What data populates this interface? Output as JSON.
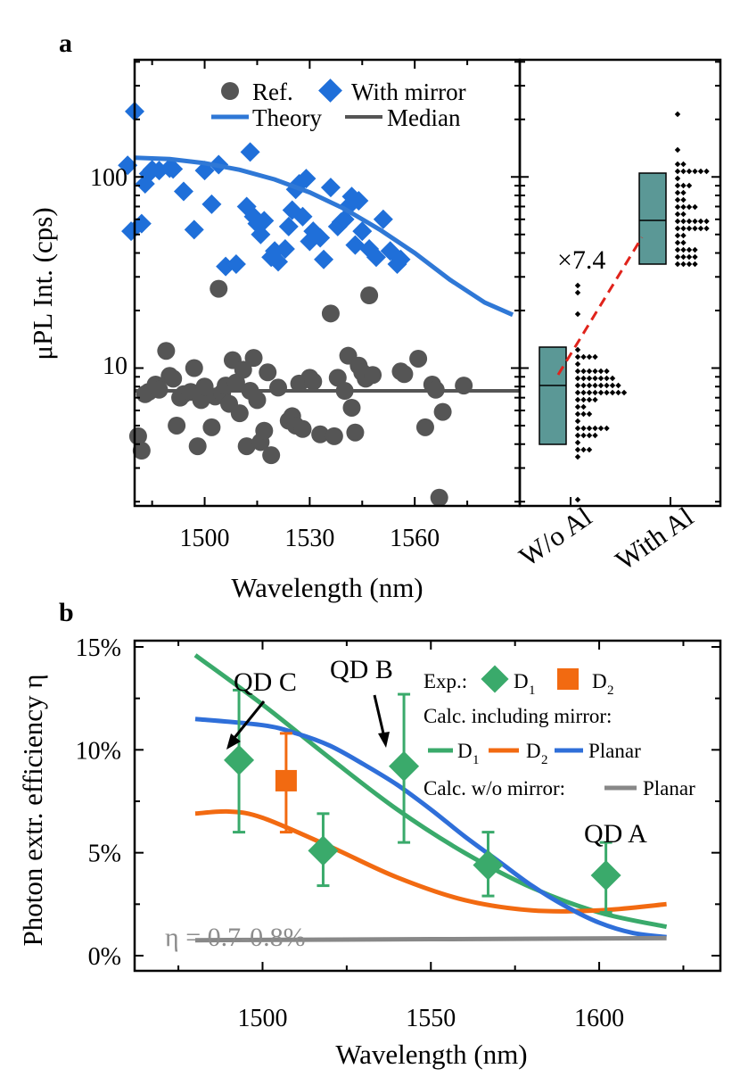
{
  "panel_a": {
    "label": "a",
    "xlabel": "Wavelength (nm)",
    "ylabel": "μPL Int. (cps)",
    "ytick_labels": [
      "10",
      "100"
    ],
    "legend": {
      "ref": "Ref.",
      "mirror": "With mirror",
      "theory": "Theory",
      "median": "Median"
    },
    "box_categories": [
      "W/o Al",
      "With Al"
    ],
    "ratio_label": "×7.4",
    "colors": {
      "ref": "#555555",
      "mirror": "#1f6fd9",
      "theory": "#2f78d6",
      "median": "#555555",
      "box": "#5b9896",
      "ratio": "#e0231b"
    }
  },
  "panel_b": {
    "label": "b",
    "xlabel": "Wavelength (nm)",
    "ylabel": "Photon extr. efficiency η",
    "legend": {
      "exp": "Exp.:",
      "d1": "D",
      "d2": "D",
      "sub1": "1",
      "sub2": "2",
      "calc_mirror": "Calc. including mirror:",
      "planar": "Planar",
      "calc_nomirror": "Calc. w/o mirror:",
      "planar2": "Planar"
    },
    "annotations": {
      "qd_a": "QD A",
      "qd_b": "QD B",
      "qd_c": "QD C",
      "eta": "η = 0.7-0.8%"
    },
    "colors": {
      "d1": "#3aaa6b",
      "d2": "#f26a11",
      "planar": "#2f6fd9",
      "nomirror": "#888888",
      "eta_text": "#8c8c8c"
    }
  },
  "chart_data": [
    {
      "type": "scatter",
      "title": "",
      "xlabel": "Wavelength (nm)",
      "ylabel": "μPL Int. (cps)",
      "xlim": [
        1480,
        1590
      ],
      "ylim": [
        1.9,
        410
      ],
      "yscale": "log",
      "xticks": [
        1500,
        1530,
        1560
      ],
      "series": [
        {
          "name": "Ref.",
          "points": [
            [
              1481,
              4.4
            ],
            [
              1482,
              3.7
            ],
            [
              1483,
              7.3
            ],
            [
              1484,
              7.5
            ],
            [
              1486,
              8.2
            ],
            [
              1487,
              7.7
            ],
            [
              1489,
              12.3
            ],
            [
              1490,
              9.1
            ],
            [
              1491,
              8.8
            ],
            [
              1492,
              5.0
            ],
            [
              1493,
              7.0
            ],
            [
              1494,
              7.3
            ],
            [
              1496,
              7.5
            ],
            [
              1497,
              10.0
            ],
            [
              1498,
              3.9
            ],
            [
              1499,
              6.8
            ],
            [
              1500,
              8.0
            ],
            [
              1502,
              4.9
            ],
            [
              1503,
              7.1
            ],
            [
              1504,
              26.0
            ],
            [
              1505,
              7.4
            ],
            [
              1506,
              8.1
            ],
            [
              1507,
              6.5
            ],
            [
              1508,
              11.0
            ],
            [
              1509,
              8.4
            ],
            [
              1510,
              5.8
            ],
            [
              1511,
              9.8
            ],
            [
              1512,
              3.9
            ],
            [
              1513,
              7.6
            ],
            [
              1514,
              11.3
            ],
            [
              1515,
              6.8
            ],
            [
              1516,
              4.1
            ],
            [
              1517,
              4.7
            ],
            [
              1518,
              9.5
            ],
            [
              1519,
              3.5
            ],
            [
              1521,
              7.9
            ],
            [
              1524,
              5.3
            ],
            [
              1525,
              5.6
            ],
            [
              1526,
              5.0
            ],
            [
              1527,
              8.3
            ],
            [
              1528,
              4.8
            ],
            [
              1530,
              8.9
            ],
            [
              1531,
              8.5
            ],
            [
              1533,
              4.5
            ],
            [
              1536,
              19.3
            ],
            [
              1537,
              4.4
            ],
            [
              1538,
              8.9
            ],
            [
              1540,
              7.6
            ],
            [
              1541,
              11.6
            ],
            [
              1542,
              6.2
            ],
            [
              1543,
              4.6
            ],
            [
              1544,
              10.3
            ],
            [
              1545,
              9.5
            ],
            [
              1546,
              8.8
            ],
            [
              1547,
              24.0
            ],
            [
              1548,
              9.2
            ],
            [
              1556,
              9.6
            ],
            [
              1557,
              9.3
            ],
            [
              1561,
              11.2
            ],
            [
              1563,
              4.9
            ],
            [
              1565,
              8.2
            ],
            [
              1566,
              7.7
            ],
            [
              1567,
              2.1
            ],
            [
              1568,
              5.9
            ],
            [
              1574,
              8.1
            ]
          ]
        },
        {
          "name": "With mirror",
          "points": [
            [
              1478,
              115
            ],
            [
              1479,
              52
            ],
            [
              1480,
              220
            ],
            [
              1482,
              57
            ],
            [
              1483,
              92
            ],
            [
              1484,
              104
            ],
            [
              1485,
              109
            ],
            [
              1487,
              108
            ],
            [
              1490,
              111
            ],
            [
              1491,
              110
            ],
            [
              1494,
              84
            ],
            [
              1497,
              53
            ],
            [
              1500,
              108
            ],
            [
              1502,
              72
            ],
            [
              1504,
              116
            ],
            [
              1506,
              34
            ],
            [
              1509,
              35
            ],
            [
              1512,
              70
            ],
            [
              1513,
              135
            ],
            [
              1514,
              62
            ],
            [
              1515,
              57
            ],
            [
              1516,
              50
            ],
            [
              1517,
              59
            ],
            [
              1519,
              38
            ],
            [
              1520,
              41
            ],
            [
              1521,
              36
            ],
            [
              1523,
              42
            ],
            [
              1524,
              55
            ],
            [
              1525,
              67
            ],
            [
              1526,
              86
            ],
            [
              1527,
              92
            ],
            [
              1528,
              62
            ],
            [
              1529,
              98
            ],
            [
              1530,
              46
            ],
            [
              1531,
              52
            ],
            [
              1533,
              48
            ],
            [
              1534,
              37
            ],
            [
              1536,
              88
            ],
            [
              1538,
              55
            ],
            [
              1539,
              58
            ],
            [
              1540,
              60
            ],
            [
              1541,
              70
            ],
            [
              1542,
              79
            ],
            [
              1543,
              44
            ],
            [
              1544,
              75
            ],
            [
              1545,
              52
            ],
            [
              1547,
              42
            ],
            [
              1549,
              38
            ],
            [
              1551,
              60
            ],
            [
              1553,
              41
            ],
            [
              1555,
              35
            ],
            [
              1556,
              37
            ]
          ]
        },
        {
          "name": "Theory",
          "line": [
            [
              1480,
              126
            ],
            [
              1490,
              124
            ],
            [
              1500,
              118
            ],
            [
              1510,
              109
            ],
            [
              1520,
              97
            ],
            [
              1530,
              83
            ],
            [
              1540,
              68
            ],
            [
              1550,
              53
            ],
            [
              1560,
              40
            ],
            [
              1570,
              29
            ],
            [
              1580,
              22
            ],
            [
              1588,
              19
            ]
          ]
        },
        {
          "name": "Median",
          "value": 7.6
        }
      ]
    },
    {
      "type": "box",
      "categories": [
        "W/o Al",
        "With Al"
      ],
      "boxes": [
        {
          "name": "W/o Al",
          "q1": 3.8,
          "median": 7.6,
          "q3": 12.0
        },
        {
          "name": "With Al",
          "q1": 34,
          "median": 56,
          "q3": 100
        }
      ],
      "ratio": 7.4
    },
    {
      "type": "line",
      "title": "",
      "xlabel": "Wavelength (nm)",
      "ylabel": "Photon extr. efficiency η",
      "xlim": [
        1462,
        1636
      ],
      "ylim": [
        0,
        15
      ],
      "xticks": [
        1500,
        1550,
        1600
      ],
      "yticks": [
        0,
        5,
        10,
        15
      ],
      "ytick_labels": [
        "0%",
        "5%",
        "10%",
        "15%"
      ],
      "series": [
        {
          "name": "Calc. D1",
          "x": [
            1480,
            1500,
            1520,
            1540,
            1560,
            1580,
            1600,
            1620
          ],
          "values": [
            14.6,
            12.2,
            9.6,
            7.1,
            5.0,
            3.3,
            2.1,
            1.4
          ]
        },
        {
          "name": "Calc. D2",
          "x": [
            1480,
            1490,
            1500,
            1520,
            1540,
            1560,
            1580,
            1600,
            1620
          ],
          "values": [
            6.9,
            7.0,
            6.7,
            5.3,
            3.8,
            2.7,
            2.2,
            2.2,
            2.5
          ]
        },
        {
          "name": "Calc. Planar",
          "x": [
            1480,
            1500,
            1510,
            1520,
            1530,
            1540,
            1550,
            1560,
            1570,
            1580,
            1590,
            1600,
            1610,
            1620
          ],
          "values": [
            11.5,
            11.2,
            10.8,
            10.2,
            9.3,
            8.3,
            7.1,
            5.8,
            4.6,
            3.4,
            2.4,
            1.6,
            1.1,
            0.9
          ]
        },
        {
          "name": "Calc. w/o mirror Planar",
          "x": [
            1480,
            1620
          ],
          "values": [
            0.75,
            0.85
          ]
        },
        {
          "name": "Exp. D1",
          "x": [
            1493,
            1518,
            1542,
            1567,
            1602
          ],
          "values": [
            9.5,
            5.1,
            9.2,
            4.4,
            3.9
          ],
          "err_low": [
            6.0,
            3.4,
            5.5,
            2.9,
            2.1
          ],
          "err_high": [
            12.9,
            6.9,
            12.7,
            6.0,
            5.5
          ]
        },
        {
          "name": "Exp. D2",
          "x": [
            1507
          ],
          "values": [
            8.5
          ],
          "err_low": [
            6.0
          ],
          "err_high": [
            10.8
          ]
        }
      ]
    }
  ]
}
